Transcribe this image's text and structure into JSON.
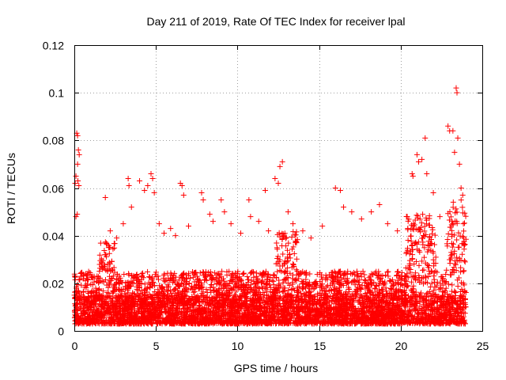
{
  "chart_data": {
    "type": "scatter",
    "title": "Day 211 of 2019, Rate Of TEC Index for receiver lpal",
    "xlabel": "GPS time / hours",
    "ylabel": "ROTI / TECUs",
    "xlim": [
      0,
      25
    ],
    "ylim": [
      0,
      0.12
    ],
    "xticks": [
      0,
      5,
      10,
      15,
      20,
      25
    ],
    "yticks": [
      0,
      0.02,
      0.04,
      0.06,
      0.08,
      0.1,
      0.12
    ],
    "xtick_labels": [
      "0",
      "5",
      "10",
      "15",
      "20",
      "25"
    ],
    "ytick_labels": [
      "0",
      "0.02",
      "0.04",
      "0.06",
      "0.08",
      "0.1",
      "0.12"
    ],
    "grid": true,
    "marker": "+",
    "color": "#ff0000",
    "series": [
      {
        "name": "ROTI",
        "points": [
          [
            0.05,
            0.062
          ],
          [
            0.1,
            0.065
          ],
          [
            0.15,
            0.083
          ],
          [
            0.2,
            0.082
          ],
          [
            0.25,
            0.076
          ],
          [
            0.3,
            0.074
          ],
          [
            0.2,
            0.07
          ],
          [
            0.18,
            0.049
          ],
          [
            0.1,
            0.048
          ],
          [
            0.22,
            0.063
          ],
          [
            0.28,
            0.061
          ],
          [
            1.9,
            0.056
          ],
          [
            2.2,
            0.042
          ],
          [
            2.6,
            0.039
          ],
          [
            3.0,
            0.045
          ],
          [
            3.3,
            0.064
          ],
          [
            3.35,
            0.061
          ],
          [
            3.5,
            0.052
          ],
          [
            4.0,
            0.063
          ],
          [
            4.3,
            0.059
          ],
          [
            4.5,
            0.061
          ],
          [
            4.7,
            0.066
          ],
          [
            4.8,
            0.064
          ],
          [
            4.9,
            0.058
          ],
          [
            5.2,
            0.045
          ],
          [
            5.5,
            0.041
          ],
          [
            5.9,
            0.043
          ],
          [
            6.2,
            0.04
          ],
          [
            6.5,
            0.062
          ],
          [
            6.6,
            0.061
          ],
          [
            6.7,
            0.057
          ],
          [
            7.0,
            0.044
          ],
          [
            7.8,
            0.058
          ],
          [
            7.9,
            0.055
          ],
          [
            8.3,
            0.049
          ],
          [
            8.5,
            0.046
          ],
          [
            9.0,
            0.055
          ],
          [
            9.2,
            0.05
          ],
          [
            9.6,
            0.045
          ],
          [
            10.2,
            0.041
          ],
          [
            10.7,
            0.055
          ],
          [
            10.8,
            0.048
          ],
          [
            11.3,
            0.046
          ],
          [
            11.7,
            0.059
          ],
          [
            11.9,
            0.042
          ],
          [
            12.3,
            0.064
          ],
          [
            12.6,
            0.069
          ],
          [
            12.75,
            0.071
          ],
          [
            12.5,
            0.062
          ],
          [
            13.1,
            0.05
          ],
          [
            13.4,
            0.045
          ],
          [
            14.0,
            0.042
          ],
          [
            14.5,
            0.039
          ],
          [
            15.2,
            0.044
          ],
          [
            16.0,
            0.06
          ],
          [
            16.3,
            0.059
          ],
          [
            16.5,
            0.052
          ],
          [
            17.0,
            0.05
          ],
          [
            17.6,
            0.047
          ],
          [
            18.2,
            0.05
          ],
          [
            18.7,
            0.053
          ],
          [
            19.2,
            0.045
          ],
          [
            19.8,
            0.042
          ],
          [
            20.4,
            0.048
          ],
          [
            20.7,
            0.066
          ],
          [
            20.75,
            0.065
          ],
          [
            21.0,
            0.074
          ],
          [
            21.1,
            0.071
          ],
          [
            21.3,
            0.072
          ],
          [
            21.5,
            0.081
          ],
          [
            21.6,
            0.066
          ],
          [
            22.0,
            0.058
          ],
          [
            22.4,
            0.048
          ],
          [
            22.9,
            0.086
          ],
          [
            23.0,
            0.084
          ],
          [
            23.2,
            0.084
          ],
          [
            23.3,
            0.075
          ],
          [
            23.4,
            0.102
          ],
          [
            23.45,
            0.1
          ],
          [
            23.5,
            0.081
          ],
          [
            23.6,
            0.07
          ],
          [
            23.7,
            0.06
          ],
          [
            23.8,
            0.057
          ]
        ]
      }
    ],
    "dense_band": {
      "x_range": [
        0,
        24
      ],
      "typical_low": 0.003,
      "typical_high": 0.025,
      "peak_regions": [
        {
          "x": [
            1.5,
            2.5
          ],
          "high": 0.038
        },
        {
          "x": [
            12.3,
            13.7
          ],
          "high": 0.042
        },
        {
          "x": [
            20.3,
            22.2
          ],
          "high": 0.05
        },
        {
          "x": [
            22.8,
            24.0
          ],
          "high": 0.055
        }
      ]
    }
  }
}
